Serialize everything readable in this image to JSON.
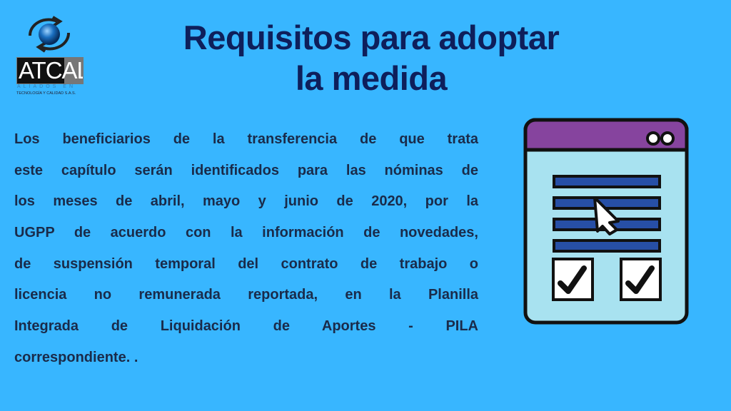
{
  "logo": {
    "word": "ATCAL",
    "tagline": "ALIADOS EN",
    "company": "TECNOLOGÍA Y CALIDAD S.A.S."
  },
  "title": {
    "line1": "Requisitos para adoptar",
    "line2": "la medida"
  },
  "body": {
    "lines": [
      "Los beneficiarios de la transferencia de que trata",
      "este capítulo serán identificados para las nóminas de",
      "los meses de abril, mayo y junio de 2020, por la",
      "UGPP de acuerdo con la información de novedades,",
      "de suspensión temporal  del contrato de trabajo o",
      "licencia no remunerada reportada, en la Planilla",
      "Integrada de Liquidación de Aportes - PILA",
      "correspondiente. ."
    ]
  },
  "illustration": {
    "icon": "web-form-checklist-icon",
    "colors": {
      "header": "#86449e",
      "window": "#a8e2f0",
      "lines": "#274fa6"
    }
  },
  "colors": {
    "background": "#38b6ff",
    "title": "#0e1f5b",
    "text": "#1a2b4a"
  }
}
